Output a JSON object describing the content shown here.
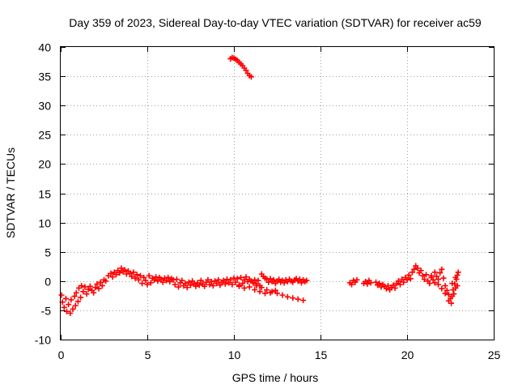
{
  "chart_data": {
    "type": "scatter",
    "title": "Day 359 of 2023, Sidereal Day-to-day VTEC variation (SDTVAR) for receiver ac59",
    "xlabel": "GPS time / hours",
    "ylabel": "SDTVAR / TECUs",
    "xlim": [
      0,
      25
    ],
    "ylim": [
      -10,
      40
    ],
    "x_ticks": [
      0,
      5,
      10,
      15,
      20,
      25
    ],
    "y_ticks": [
      -10,
      -5,
      0,
      5,
      10,
      15,
      20,
      25,
      30,
      35,
      40
    ],
    "grid": true,
    "marker": "plus",
    "series": [
      {
        "name": "SDTVAR",
        "color": "#ff0000",
        "points": [
          [
            0.05,
            -2.4
          ],
          [
            0.1,
            -3.6
          ],
          [
            0.2,
            -4.5
          ],
          [
            0.3,
            -3.0
          ],
          [
            0.35,
            -5.2
          ],
          [
            0.45,
            -4.0
          ],
          [
            0.55,
            -5.5
          ],
          [
            0.6,
            -3.2
          ],
          [
            0.7,
            -4.8
          ],
          [
            0.8,
            -2.6
          ],
          [
            0.85,
            -4.2
          ],
          [
            0.9,
            -2.0
          ],
          [
            1.0,
            -3.5
          ],
          [
            1.05,
            -1.2
          ],
          [
            1.15,
            -2.8
          ],
          [
            1.2,
            -0.8
          ],
          [
            1.3,
            -1.8
          ],
          [
            1.4,
            -1.0
          ],
          [
            1.5,
            -2.2
          ],
          [
            1.6,
            -1.4
          ],
          [
            1.7,
            -0.9
          ],
          [
            1.8,
            -1.6
          ],
          [
            1.9,
            -2.0
          ],
          [
            2.0,
            -1.1
          ],
          [
            2.1,
            -0.5
          ],
          [
            2.2,
            -1.3
          ],
          [
            2.3,
            -0.2
          ],
          [
            2.4,
            -0.8
          ],
          [
            2.5,
            0.2
          ],
          [
            2.6,
            0.0
          ],
          [
            2.75,
            0.9
          ],
          [
            2.9,
            1.3
          ],
          [
            3.0,
            0.7
          ],
          [
            3.1,
            1.5
          ],
          [
            3.2,
            1.1
          ],
          [
            3.3,
            1.8
          ],
          [
            3.4,
            1.4
          ],
          [
            3.5,
            2.2
          ],
          [
            3.6,
            1.6
          ],
          [
            3.7,
            1.9
          ],
          [
            3.8,
            1.2
          ],
          [
            3.9,
            1.7
          ],
          [
            4.0,
            1.3
          ],
          [
            4.1,
            0.8
          ],
          [
            4.2,
            1.5
          ],
          [
            4.3,
            0.5
          ],
          [
            4.4,
            1.1
          ],
          [
            4.5,
            0.2
          ],
          [
            4.6,
            0.9
          ],
          [
            4.7,
            -0.4
          ],
          [
            4.8,
            0.6
          ],
          [
            4.9,
            0.1
          ],
          [
            5.0,
            -0.6
          ],
          [
            5.1,
            0.9
          ],
          [
            5.2,
            -0.3
          ],
          [
            5.3,
            0.5
          ],
          [
            5.4,
            0.2
          ],
          [
            5.5,
            0.7
          ],
          [
            5.6,
            0.0
          ],
          [
            5.7,
            0.6
          ],
          [
            5.8,
            0.3
          ],
          [
            5.9,
            -0.2
          ],
          [
            6.0,
            0.5
          ],
          [
            6.1,
            0.1
          ],
          [
            6.2,
            0.6
          ],
          [
            6.3,
            -0.1
          ],
          [
            6.4,
            0.4
          ],
          [
            6.5,
            0.2
          ],
          [
            6.6,
            -0.6
          ],
          [
            6.7,
            0.3
          ],
          [
            6.8,
            -1.0
          ],
          [
            6.9,
            -0.3
          ],
          [
            7.0,
            0.1
          ],
          [
            7.1,
            -0.8
          ],
          [
            7.2,
            -0.4
          ],
          [
            7.3,
            -1.1
          ],
          [
            7.4,
            -0.2
          ],
          [
            7.5,
            -0.7
          ],
          [
            7.6,
            0.0
          ],
          [
            7.7,
            -0.5
          ],
          [
            7.8,
            -0.9
          ],
          [
            7.9,
            -0.3
          ],
          [
            8.0,
            -0.7
          ],
          [
            8.1,
            0.1
          ],
          [
            8.2,
            -0.5
          ],
          [
            8.3,
            -0.9
          ],
          [
            8.4,
            -0.2
          ],
          [
            8.5,
            0.2
          ],
          [
            8.6,
            -0.6
          ],
          [
            8.7,
            -0.1
          ],
          [
            8.8,
            -0.8
          ],
          [
            8.9,
            0.0
          ],
          [
            9.0,
            -0.4
          ],
          [
            9.1,
            0.2
          ],
          [
            9.2,
            -0.7
          ],
          [
            9.3,
            -0.2
          ],
          [
            9.4,
            0.1
          ],
          [
            9.5,
            -0.5
          ],
          [
            9.6,
            0.3
          ],
          [
            9.7,
            -0.3
          ],
          [
            9.8,
            0.2
          ],
          [
            9.9,
            -0.6
          ],
          [
            10.0,
            0.5
          ],
          [
            10.1,
            -0.2
          ],
          [
            10.2,
            0.4
          ],
          [
            10.3,
            -0.7
          ],
          [
            10.4,
            0.6
          ],
          [
            10.5,
            -0.4
          ],
          [
            10.6,
            0.2
          ],
          [
            10.7,
            0.7
          ],
          [
            10.8,
            -0.1
          ],
          [
            10.9,
            0.3
          ],
          [
            11.0,
            0.0
          ],
          [
            11.1,
            -0.3
          ],
          [
            11.2,
            0.2
          ],
          [
            11.3,
            -0.5
          ],
          [
            11.4,
            0.1
          ],
          [
            11.5,
            -0.8
          ],
          [
            11.6,
            1.2
          ],
          [
            11.7,
            0.8
          ],
          [
            11.8,
            0.5
          ],
          [
            11.9,
            0.3
          ],
          [
            12.0,
            -0.2
          ],
          [
            12.1,
            0.4
          ],
          [
            12.2,
            -0.1
          ],
          [
            12.3,
            0.2
          ],
          [
            12.4,
            -0.4
          ],
          [
            12.5,
            0.0
          ],
          [
            12.6,
            0.3
          ],
          [
            12.7,
            -0.2
          ],
          [
            12.8,
            0.1
          ],
          [
            12.9,
            -0.3
          ],
          [
            13.0,
            0.2
          ],
          [
            13.1,
            -0.1
          ],
          [
            13.2,
            0.3
          ],
          [
            13.3,
            0.0
          ],
          [
            13.4,
            -0.2
          ],
          [
            13.5,
            0.2
          ],
          [
            13.6,
            0.4
          ],
          [
            13.7,
            0.0
          ],
          [
            13.8,
            0.3
          ],
          [
            13.9,
            -0.3
          ],
          [
            14.0,
            0.2
          ],
          [
            14.1,
            -0.1
          ],
          [
            14.2,
            0.1
          ],
          [
            11.3,
            -0.8
          ],
          [
            11.6,
            -1.1
          ],
          [
            11.9,
            -1.5
          ],
          [
            12.2,
            -1.8
          ],
          [
            12.5,
            -2.1
          ],
          [
            12.8,
            -2.4
          ],
          [
            13.1,
            -2.7
          ],
          [
            13.4,
            -2.9
          ],
          [
            13.7,
            -3.1
          ],
          [
            14.0,
            -3.3
          ],
          [
            10.3,
            -0.9
          ],
          [
            10.6,
            -1.2
          ],
          [
            10.9,
            -1.0
          ],
          [
            11.2,
            -1.5
          ],
          [
            11.5,
            -1.8
          ],
          [
            11.8,
            -2.1
          ],
          [
            12.1,
            -2.0
          ],
          [
            12.4,
            -1.6
          ],
          [
            9.8,
            38.0
          ],
          [
            9.9,
            38.2
          ],
          [
            10.0,
            38.1
          ],
          [
            10.1,
            37.9
          ],
          [
            10.2,
            37.7
          ],
          [
            10.3,
            37.4
          ],
          [
            10.4,
            37.1
          ],
          [
            10.5,
            36.8
          ],
          [
            10.6,
            36.4
          ],
          [
            10.7,
            36.0
          ],
          [
            10.8,
            35.5
          ],
          [
            10.9,
            35.1
          ],
          [
            11.0,
            34.9
          ],
          [
            16.7,
            -0.3
          ],
          [
            16.8,
            -0.6
          ],
          [
            16.9,
            0.1
          ],
          [
            17.0,
            -0.2
          ],
          [
            17.1,
            0.2
          ],
          [
            17.5,
            -0.4
          ],
          [
            17.6,
            -0.1
          ],
          [
            17.7,
            -0.5
          ],
          [
            17.8,
            0.1
          ],
          [
            17.9,
            -0.3
          ],
          [
            18.2,
            -0.2
          ],
          [
            18.3,
            -0.7
          ],
          [
            18.4,
            -0.4
          ],
          [
            18.5,
            -1.0
          ],
          [
            18.6,
            -0.6
          ],
          [
            18.7,
            -0.9
          ],
          [
            18.8,
            -1.3
          ],
          [
            18.9,
            -0.8
          ],
          [
            19.0,
            -1.5
          ],
          [
            19.1,
            -1.1
          ],
          [
            19.2,
            -0.7
          ],
          [
            19.3,
            -1.2
          ],
          [
            19.4,
            -0.4
          ],
          [
            19.5,
            0.0
          ],
          [
            19.6,
            -0.6
          ],
          [
            19.7,
            0.3
          ],
          [
            19.8,
            -0.2
          ],
          [
            19.9,
            0.6
          ],
          [
            20.0,
            0.2
          ],
          [
            20.1,
            1.0
          ],
          [
            20.2,
            0.4
          ],
          [
            20.3,
            1.5
          ],
          [
            20.4,
            2.0
          ],
          [
            20.5,
            2.6
          ],
          [
            20.6,
            2.2
          ],
          [
            20.7,
            1.4
          ],
          [
            20.8,
            1.8
          ],
          [
            20.9,
            0.9
          ],
          [
            21.0,
            0.3
          ],
          [
            21.1,
            1.1
          ],
          [
            21.2,
            0.0
          ],
          [
            21.3,
            -0.4
          ],
          [
            21.4,
            0.6
          ],
          [
            21.5,
            0.2
          ],
          [
            21.6,
            -0.3
          ],
          [
            21.7,
            0.8
          ],
          [
            21.8,
            0.3
          ],
          [
            21.9,
            1.4
          ],
          [
            22.0,
            2.0
          ],
          [
            22.1,
            0.5
          ],
          [
            22.2,
            -0.8
          ],
          [
            22.3,
            -1.6
          ],
          [
            22.4,
            -2.3
          ],
          [
            22.5,
            -3.0
          ],
          [
            22.55,
            -3.8
          ],
          [
            22.6,
            -2.6
          ],
          [
            22.65,
            -1.5
          ],
          [
            22.7,
            -2.2
          ],
          [
            22.75,
            -0.5
          ],
          [
            22.8,
            -1.2
          ],
          [
            22.85,
            0.3
          ],
          [
            22.9,
            1.0
          ],
          [
            22.95,
            1.5
          ],
          [
            21.4,
            0.9
          ],
          [
            21.6,
            1.5
          ],
          [
            21.8,
            -0.6
          ],
          [
            22.0,
            -1.3
          ],
          [
            22.2,
            -2.1
          ],
          [
            22.4,
            -3.4
          ],
          [
            22.6,
            -0.4
          ],
          [
            22.8,
            0.6
          ],
          [
            22.9,
            -0.8
          ]
        ]
      }
    ]
  }
}
